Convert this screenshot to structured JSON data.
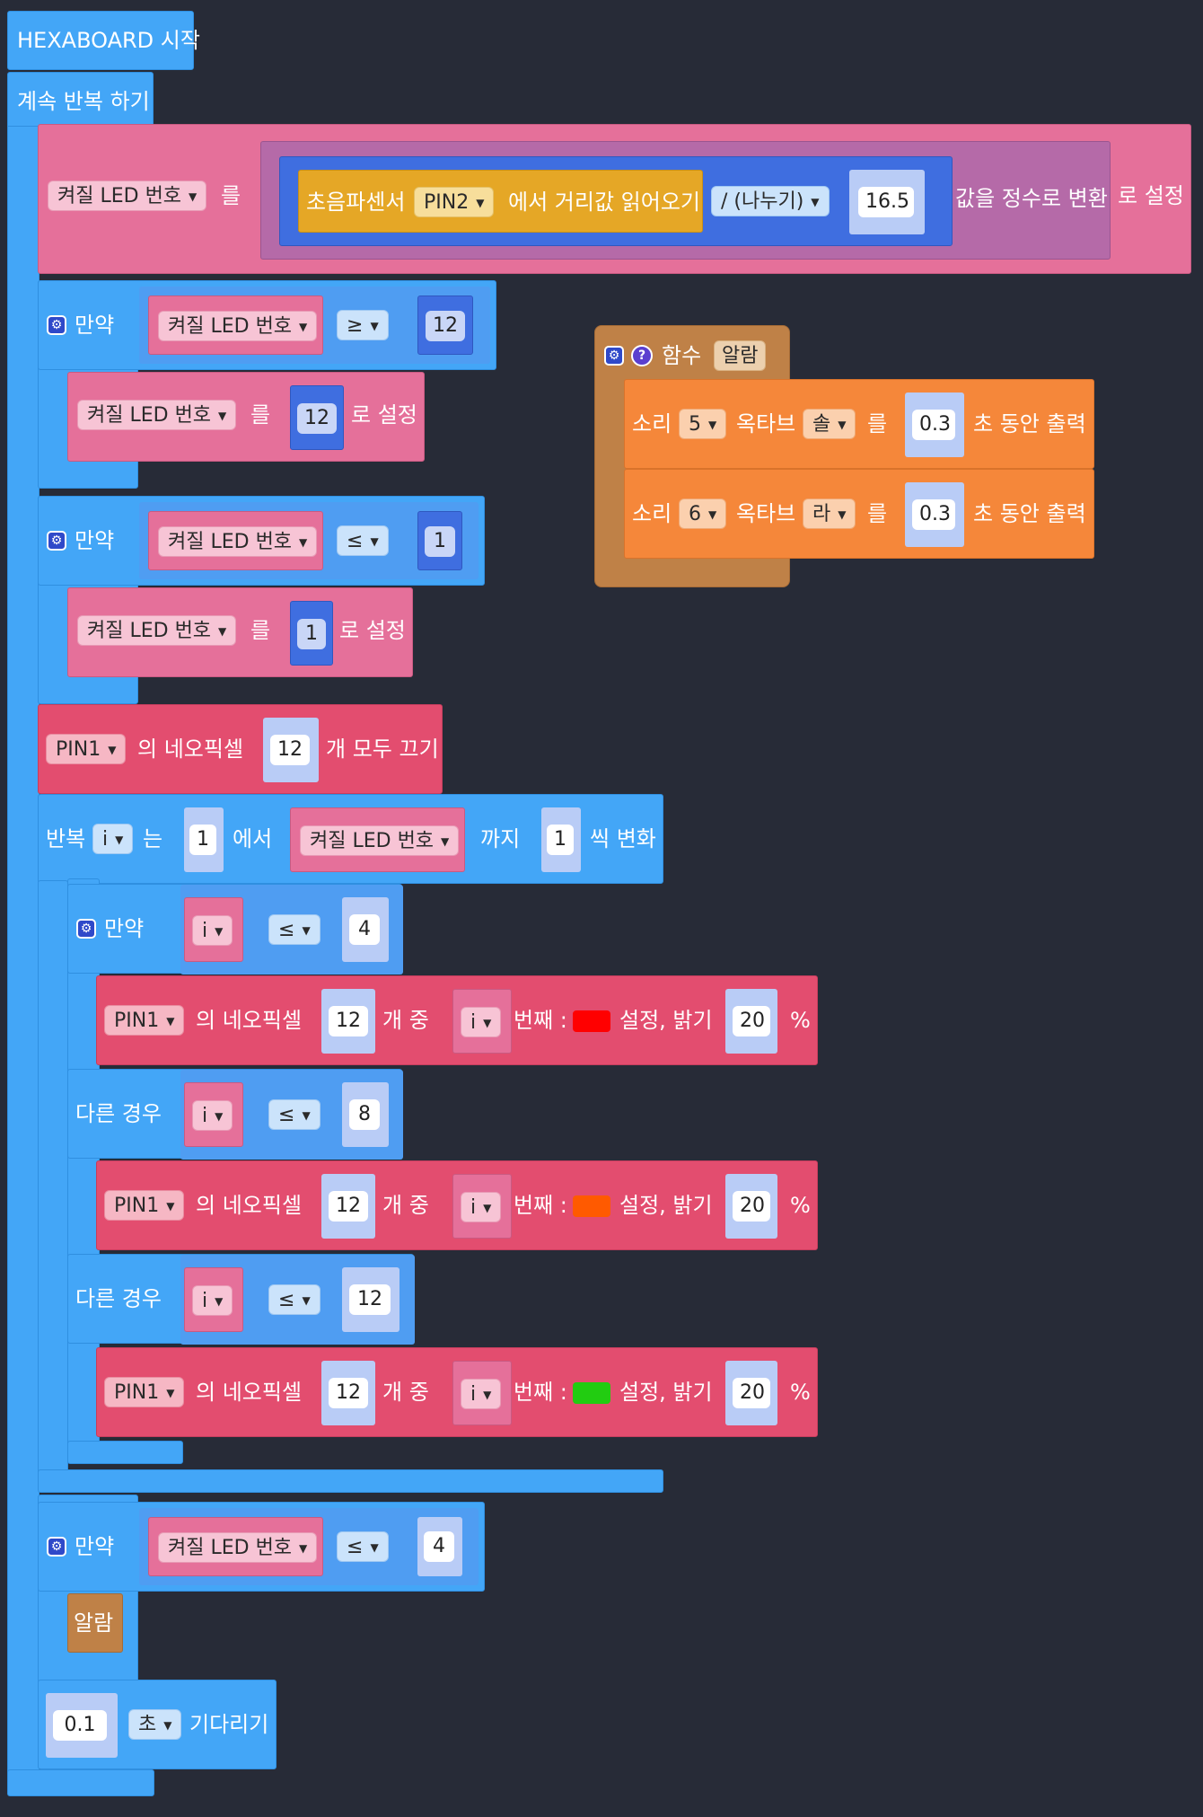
{
  "start": {
    "label": "HEXABOARD 시작"
  },
  "forever": {
    "label": "계속 반복 하기"
  },
  "set_block": {
    "var": "켜질 LED 번호",
    "reul": "를",
    "sensor_text": "초음파센서",
    "pin": "PIN2",
    "read_text": "에서 거리값 읽어오기",
    "op": "/ (나누기)",
    "divisor": "16.5",
    "convert_text": "값을 정수로 변환",
    "set_text": "로 설정"
  },
  "if1": {
    "label": "만약",
    "var": "켜질 LED 번호",
    "op": "≥",
    "value": "12",
    "set_var": "켜질 LED 번호",
    "reul": "를",
    "set_value": "12",
    "set_text": "로 설정"
  },
  "if2": {
    "label": "만약",
    "var": "켜질 LED 번호",
    "op": "≤",
    "value": "1",
    "set_var": "켜질 LED 번호",
    "reul": "를",
    "set_value": "1",
    "set_text": "로 설정"
  },
  "off_block": {
    "pin": "PIN1",
    "text1": "의 네오픽셀",
    "count": "12",
    "text2": "개 모두 끄기"
  },
  "loop": {
    "label": "반복",
    "var": "i",
    "neun": "는",
    "from": "1",
    "from_text": "에서",
    "to_var": "켜질 LED 번호",
    "to_text": "까지",
    "step": "1",
    "step_text": "씩 변화"
  },
  "inner_if": {
    "if_label": "만약",
    "else_label": "다른 경우",
    "conds": [
      {
        "var": "i",
        "op": "≤",
        "value": "4"
      },
      {
        "var": "i",
        "op": "≤",
        "value": "8"
      },
      {
        "var": "i",
        "op": "≤",
        "value": "12"
      }
    ],
    "actions": [
      {
        "pin": "PIN1",
        "t1": "의 네오픽셀",
        "count": "12",
        "t2": "개 중",
        "idx": "i",
        "t3": "번째 :",
        "color": "#ff0000",
        "t4": "설정, 밝기",
        "bright": "20",
        "pct": "%"
      },
      {
        "pin": "PIN1",
        "t1": "의 네오픽셀",
        "count": "12",
        "t2": "개 중",
        "idx": "i",
        "t3": "번째 :",
        "color": "#ff5a00",
        "t4": "설정, 밝기",
        "bright": "20",
        "pct": "%"
      },
      {
        "pin": "PIN1",
        "t1": "의 네오픽셀",
        "count": "12",
        "t2": "개 중",
        "idx": "i",
        "t3": "번째 :",
        "color": "#22cc11",
        "t4": "설정, 밝기",
        "bright": "20",
        "pct": "%"
      }
    ]
  },
  "if3": {
    "label": "만약",
    "var": "켜질 LED 번호",
    "op": "≤",
    "value": "4",
    "call": "알람"
  },
  "wait": {
    "value": "0.1",
    "unit": "초",
    "text": "기다리기"
  },
  "func": {
    "label": "함수",
    "name": "알람",
    "rows": [
      {
        "t1": "소리",
        "note": "5",
        "t2": "옥타브",
        "pitch": "솔",
        "reul": "를",
        "dur": "0.3",
        "t3": "초 동안 출력"
      },
      {
        "t1": "소리",
        "note": "6",
        "t2": "옥타브",
        "pitch": "라",
        "reul": "를",
        "dur": "0.3",
        "t3": "초 동안 출력"
      }
    ]
  },
  "icons": {
    "gear": "⚙",
    "question": "?",
    "dropdown": "▼"
  },
  "colors": {
    "background": "#272b37",
    "blue": "#43a6f7",
    "pink": "#e5709a",
    "red": "#e34d6f",
    "orange": "#f5873a",
    "brown": "#bf8147"
  }
}
